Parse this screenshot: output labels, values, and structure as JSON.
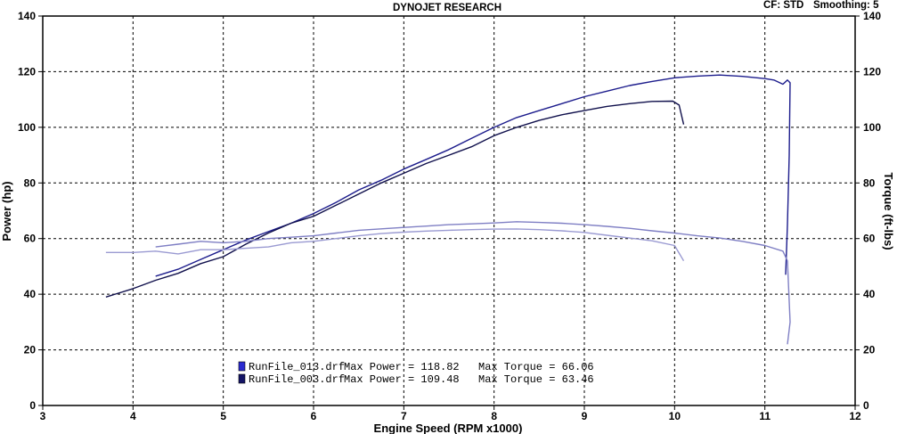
{
  "header": {
    "title": "DYNOJET RESEARCH",
    "cf": "CF: STD",
    "smoothing": "Smoothing: 5"
  },
  "chart_data": {
    "type": "line",
    "xlabel": "Engine Speed (RPM x1000)",
    "ylabel_left": "Power (hp)",
    "ylabel_right": "Torque (ft-lbs)",
    "xlim": [
      3,
      12
    ],
    "ylim": [
      0,
      140
    ],
    "x_ticks": [
      "3",
      "4",
      "5",
      "6",
      "7",
      "8",
      "9",
      "10",
      "11",
      "12"
    ],
    "y_ticks": [
      "0",
      "20",
      "40",
      "60",
      "80",
      "100",
      "120",
      "140"
    ],
    "grid": true,
    "legend_position": "bottom-center",
    "legend": [
      {
        "file": "RunFile_013.drf",
        "max_power_label": "Max Power = 118.82",
        "max_torque_label": "Max Torque = 66.06",
        "color": "#2020aa"
      },
      {
        "file": "RunFile_003.drf",
        "max_power_label": "Max Power = 109.48",
        "max_torque_label": "Max Torque = 63.46",
        "color": "#101060"
      }
    ],
    "series": [
      {
        "run": "RunFile_013.drf",
        "quantity": "power",
        "color": "#1c1c8c",
        "points": [
          [
            4.25,
            46.5
          ],
          [
            4.5,
            49
          ],
          [
            4.75,
            52.5
          ],
          [
            5.0,
            56
          ],
          [
            5.25,
            59.5
          ],
          [
            5.5,
            62.5
          ],
          [
            5.75,
            65.5
          ],
          [
            6.0,
            69
          ],
          [
            6.25,
            73
          ],
          [
            6.5,
            77.5
          ],
          [
            6.75,
            81
          ],
          [
            7.0,
            85
          ],
          [
            7.25,
            88.5
          ],
          [
            7.5,
            92
          ],
          [
            7.75,
            96
          ],
          [
            8.0,
            100
          ],
          [
            8.25,
            103.5
          ],
          [
            8.5,
            106
          ],
          [
            8.75,
            108.5
          ],
          [
            9.0,
            111
          ],
          [
            9.25,
            113
          ],
          [
            9.5,
            115
          ],
          [
            9.75,
            116.5
          ],
          [
            10.0,
            117.8
          ],
          [
            10.25,
            118.4
          ],
          [
            10.5,
            118.8
          ],
          [
            10.75,
            118.3
          ],
          [
            11.0,
            117.5
          ],
          [
            11.1,
            117
          ],
          [
            11.2,
            115.5
          ],
          [
            11.25,
            117
          ],
          [
            11.28,
            116
          ],
          [
            11.27,
            90
          ],
          [
            11.25,
            65
          ],
          [
            11.23,
            47
          ]
        ]
      },
      {
        "run": "RunFile_003.drf",
        "quantity": "power",
        "color": "#10104c",
        "points": [
          [
            3.7,
            39
          ],
          [
            4.0,
            42
          ],
          [
            4.25,
            45
          ],
          [
            4.5,
            47.5
          ],
          [
            4.75,
            51
          ],
          [
            5.0,
            53.5
          ],
          [
            5.25,
            58
          ],
          [
            5.5,
            62
          ],
          [
            5.75,
            65.5
          ],
          [
            6.0,
            68
          ],
          [
            6.25,
            72
          ],
          [
            6.5,
            76
          ],
          [
            6.75,
            80
          ],
          [
            7.0,
            83.5
          ],
          [
            7.25,
            87
          ],
          [
            7.5,
            90
          ],
          [
            7.75,
            93
          ],
          [
            8.0,
            97
          ],
          [
            8.25,
            100
          ],
          [
            8.5,
            102.5
          ],
          [
            8.75,
            104.5
          ],
          [
            9.0,
            106
          ],
          [
            9.25,
            107.5
          ],
          [
            9.5,
            108.5
          ],
          [
            9.75,
            109.3
          ],
          [
            9.98,
            109.4
          ],
          [
            10.05,
            108
          ],
          [
            10.1,
            101
          ]
        ]
      },
      {
        "run": "RunFile_013.drf",
        "quantity": "torque",
        "color": "#7f7fc4",
        "points": [
          [
            4.25,
            57
          ],
          [
            4.5,
            58
          ],
          [
            4.75,
            59
          ],
          [
            5.0,
            58.5
          ],
          [
            5.25,
            59
          ],
          [
            5.5,
            60
          ],
          [
            5.75,
            60.5
          ],
          [
            6.0,
            61
          ],
          [
            6.25,
            62
          ],
          [
            6.5,
            63
          ],
          [
            6.75,
            63.5
          ],
          [
            7.0,
            64
          ],
          [
            7.25,
            64.5
          ],
          [
            7.5,
            65
          ],
          [
            7.75,
            65.3
          ],
          [
            8.0,
            65.6
          ],
          [
            8.25,
            66.06
          ],
          [
            8.5,
            65.8
          ],
          [
            8.75,
            65.5
          ],
          [
            9.0,
            65
          ],
          [
            9.25,
            64.4
          ],
          [
            9.5,
            63.7
          ],
          [
            9.75,
            62.8
          ],
          [
            10.0,
            62
          ],
          [
            10.25,
            61
          ],
          [
            10.5,
            60.2
          ],
          [
            10.75,
            59
          ],
          [
            11.0,
            57.5
          ],
          [
            11.2,
            55.5
          ],
          [
            11.25,
            52
          ],
          [
            11.28,
            30
          ],
          [
            11.25,
            22
          ]
        ]
      },
      {
        "run": "RunFile_003.drf",
        "quantity": "torque",
        "color": "#9a9ad2",
        "points": [
          [
            3.7,
            55
          ],
          [
            4.0,
            55
          ],
          [
            4.25,
            55.5
          ],
          [
            4.5,
            54.5
          ],
          [
            4.75,
            56
          ],
          [
            5.0,
            56
          ],
          [
            5.25,
            56.5
          ],
          [
            5.5,
            57
          ],
          [
            5.75,
            58.5
          ],
          [
            6.0,
            59
          ],
          [
            6.25,
            60
          ],
          [
            6.5,
            61
          ],
          [
            6.75,
            61.8
          ],
          [
            7.0,
            62.3
          ],
          [
            7.25,
            62.7
          ],
          [
            7.5,
            63
          ],
          [
            7.75,
            63.2
          ],
          [
            8.0,
            63.4
          ],
          [
            8.25,
            63.46
          ],
          [
            8.5,
            63.2
          ],
          [
            8.75,
            62.8
          ],
          [
            9.0,
            62.2
          ],
          [
            9.25,
            61.2
          ],
          [
            9.5,
            60.2
          ],
          [
            9.75,
            59.2
          ],
          [
            10.0,
            57.5
          ],
          [
            10.1,
            52
          ]
        ]
      }
    ]
  }
}
